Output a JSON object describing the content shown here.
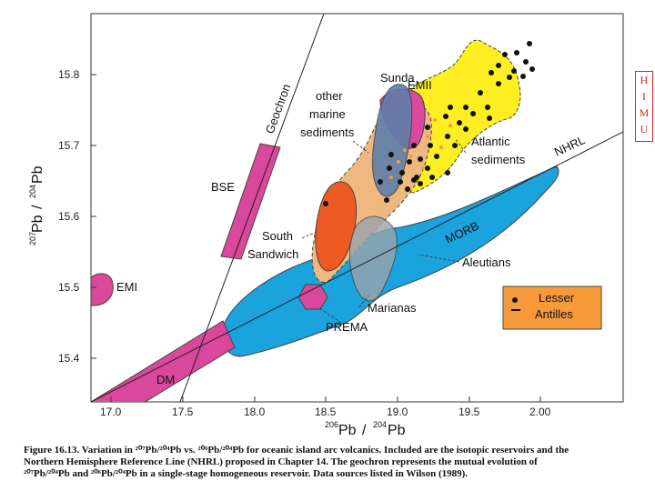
{
  "axes": {
    "x_ticks": [
      "17.0",
      "17.5",
      "18.0",
      "18.5",
      "19.0",
      "19.5",
      "2.00"
    ],
    "y_ticks": [
      "15.8",
      "15.7",
      "15.6",
      "15.5",
      "15.4"
    ],
    "x_title": {
      "sup": "206",
      "base": "Pb",
      "slash": "/",
      "sup2": "204",
      "base2": "Pb"
    },
    "y_title": {
      "sup": "207",
      "base": "Pb",
      "slash": "/",
      "sup2": "204",
      "base2": "Pb"
    }
  },
  "labels": {
    "sunda": "Sunda",
    "emii": "EMII",
    "other_marine_1": "other",
    "other_marine_2": "marine",
    "other_marine_3": "sediments",
    "geochron": "Geochron",
    "bse": "BSE",
    "south_sandwich_1": "South",
    "south_sandwich_2": "Sandwich",
    "emi": "EMI",
    "dm": "DM",
    "prema": "PREMA",
    "marianas": "Marianas",
    "aleutians": "Aleutians",
    "morb": "MORB",
    "nhrl": "NHRL",
    "atlantic_1": "Atlantic",
    "atlantic_2": "sediments",
    "lesser_1": "Lesser",
    "lesser_2": "Antilles"
  },
  "legend": {
    "symbols": "• –"
  },
  "side_tab": {
    "letters": [
      "H",
      "I",
      "M",
      "U"
    ]
  },
  "caption": {
    "line1": "Figure 16.13. Variation in ²⁰⁷Pb/²⁰⁴Pb vs. ²⁰⁶Pb/²⁰⁴Pb for oceanic island arc volcanics. Included are the isotopic reservoirs and the",
    "line2": "Northern Hemisphere Reference Line (NHRL) proposed in Chapter 14. The geochron represents the mutual evolution of",
    "line3": "²⁰⁷Pb/²⁰⁴Pb and ²⁰⁶Pb/²⁰⁴Pb in a single-stage homogeneous reservoir. Data sources listed in Wilson (1989)."
  },
  "colors": {
    "morb": "#1aa3dc",
    "magenta": "#d9489a",
    "atlantic": "#ffee22",
    "other_marine": "#efb880",
    "south_sandwich": "#ee5a22",
    "sunda": "#5e7faa",
    "lesser_antilles": "#f79a3a"
  }
}
